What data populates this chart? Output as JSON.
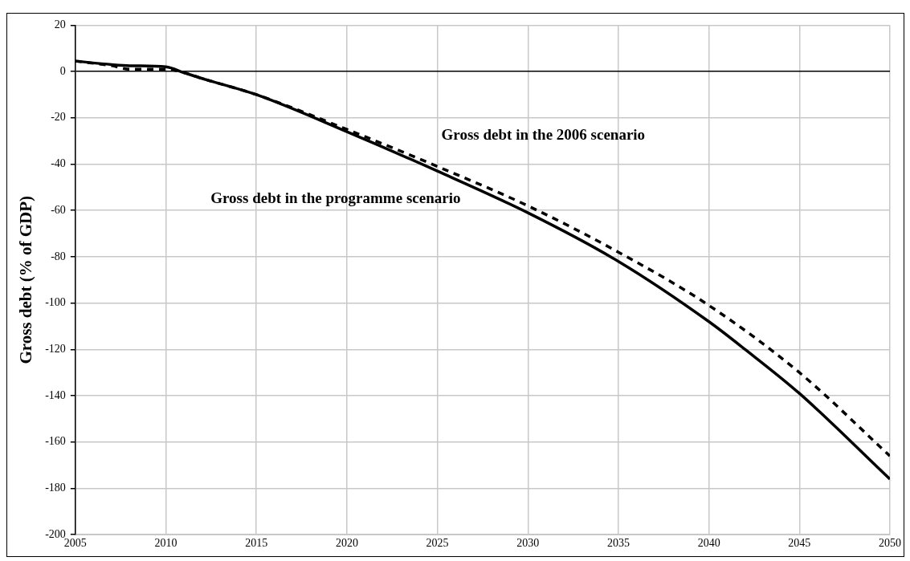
{
  "chart_data": {
    "type": "line",
    "ylabel": "Gross debt (% of GDP)",
    "xlim": [
      2005,
      2050
    ],
    "xticks": [
      2005,
      2010,
      2015,
      2020,
      2025,
      2030,
      2035,
      2040,
      2045,
      2050
    ],
    "ylim": [
      -200,
      20
    ],
    "yticks": [
      -200,
      -180,
      -160,
      -140,
      -120,
      -100,
      -80,
      -60,
      -40,
      -20,
      0,
      20
    ],
    "grid": true,
    "legend": false,
    "marker": "none",
    "series": [
      {
        "name": "Gross debt in the 2006 scenario",
        "color": "#000000",
        "line_style": "dashed",
        "x": [
          2005,
          2007,
          2008,
          2010,
          2011,
          2012,
          2015,
          2020,
          2025,
          2030,
          2035,
          2040,
          2045,
          2050
        ],
        "values": [
          4.5,
          2.5,
          1,
          1,
          -0.5,
          -3,
          -10,
          -25,
          -41,
          -58,
          -78,
          -101,
          -130,
          -166
        ]
      },
      {
        "name": "Gross debt in the programme scenario",
        "color": "#000000",
        "line_style": "solid",
        "x": [
          2005,
          2007,
          2008,
          2010,
          2011,
          2012,
          2015,
          2020,
          2025,
          2030,
          2035,
          2040,
          2042,
          2045,
          2050
        ],
        "values": [
          4.5,
          3,
          2.5,
          2,
          -0.5,
          -3,
          -10,
          -26,
          -43,
          -61,
          -82,
          -108,
          -120,
          -139,
          -176
        ]
      }
    ]
  }
}
